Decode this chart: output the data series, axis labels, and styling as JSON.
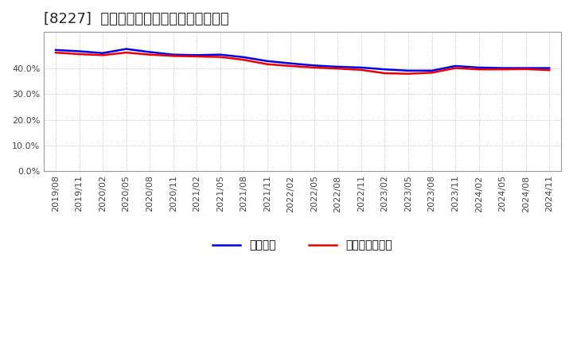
{
  "title": "[8227]  固定比率、固定長期適合率の推移",
  "line1_label": "固定比率",
  "line2_label": "固定長期適合率",
  "line1_color": "#0000EE",
  "line2_color": "#EE0000",
  "background_color": "#FFFFFF",
  "plot_bg_color": "#FFFFFF",
  "grid_color": "#AAAAAA",
  "dates": [
    "2019/08",
    "2019/11",
    "2020/02",
    "2020/05",
    "2020/08",
    "2020/11",
    "2021/02",
    "2021/05",
    "2021/08",
    "2021/11",
    "2022/02",
    "2022/05",
    "2022/08",
    "2022/11",
    "2023/02",
    "2023/05",
    "2023/08",
    "2023/11",
    "2024/02",
    "2024/05",
    "2024/08",
    "2024/11"
  ],
  "line1_values": [
    0.47,
    0.465,
    0.458,
    0.474,
    0.462,
    0.452,
    0.45,
    0.452,
    0.442,
    0.427,
    0.418,
    0.41,
    0.405,
    0.402,
    0.395,
    0.39,
    0.39,
    0.408,
    0.402,
    0.4,
    0.4,
    0.4
  ],
  "line2_values": [
    0.46,
    0.454,
    0.45,
    0.46,
    0.452,
    0.447,
    0.445,
    0.443,
    0.432,
    0.415,
    0.408,
    0.402,
    0.398,
    0.393,
    0.38,
    0.378,
    0.382,
    0.4,
    0.395,
    0.395,
    0.396,
    0.392
  ],
  "ylim": [
    0.0,
    0.54
  ],
  "yticks": [
    0.0,
    0.1,
    0.2,
    0.3,
    0.4
  ],
  "title_fontsize": 13,
  "tick_fontsize": 8,
  "legend_fontsize": 10,
  "linewidth": 1.8
}
